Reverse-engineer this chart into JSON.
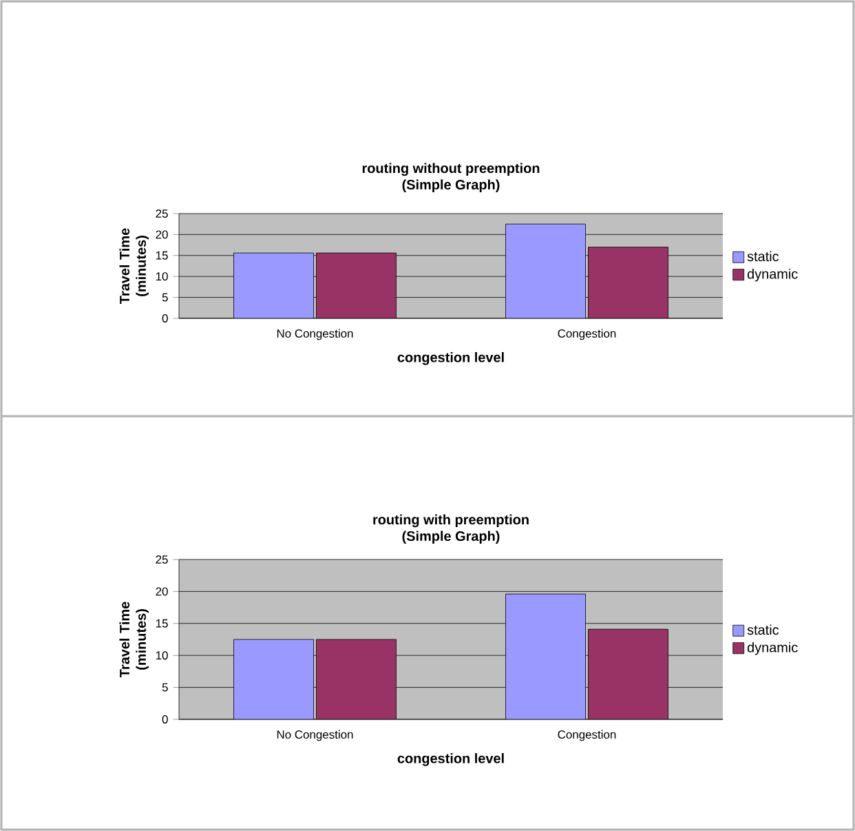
{
  "chart_data": [
    {
      "type": "bar",
      "title": "routing without preemption",
      "subtitle": "(Simple Graph)",
      "xlabel": "congestion level",
      "ylabel": "Travel Time (minutes)",
      "categories": [
        "No Congestion",
        "Congestion"
      ],
      "series": [
        {
          "name": "static",
          "color": "#9999ff",
          "values": [
            15.6,
            22.5
          ]
        },
        {
          "name": "dynamic",
          "color": "#993366",
          "values": [
            15.6,
            17.0
          ]
        }
      ],
      "ylim": [
        0,
        25
      ],
      "yticks": [
        0,
        5,
        10,
        15,
        20,
        25
      ],
      "grid": "y",
      "legend": "right"
    },
    {
      "type": "bar",
      "title": "routing with preemption",
      "subtitle": "(Simple Graph)",
      "xlabel": "congestion level",
      "ylabel": "Travel Time (minutes)",
      "categories": [
        "No Congestion",
        "Congestion"
      ],
      "series": [
        {
          "name": "static",
          "color": "#9999ff",
          "values": [
            12.5,
            19.6
          ]
        },
        {
          "name": "dynamic",
          "color": "#993366",
          "values": [
            12.5,
            14.1
          ]
        }
      ],
      "ylim": [
        0,
        25
      ],
      "yticks": [
        0,
        5,
        10,
        15,
        20,
        25
      ],
      "grid": "y",
      "legend": "right"
    }
  ]
}
